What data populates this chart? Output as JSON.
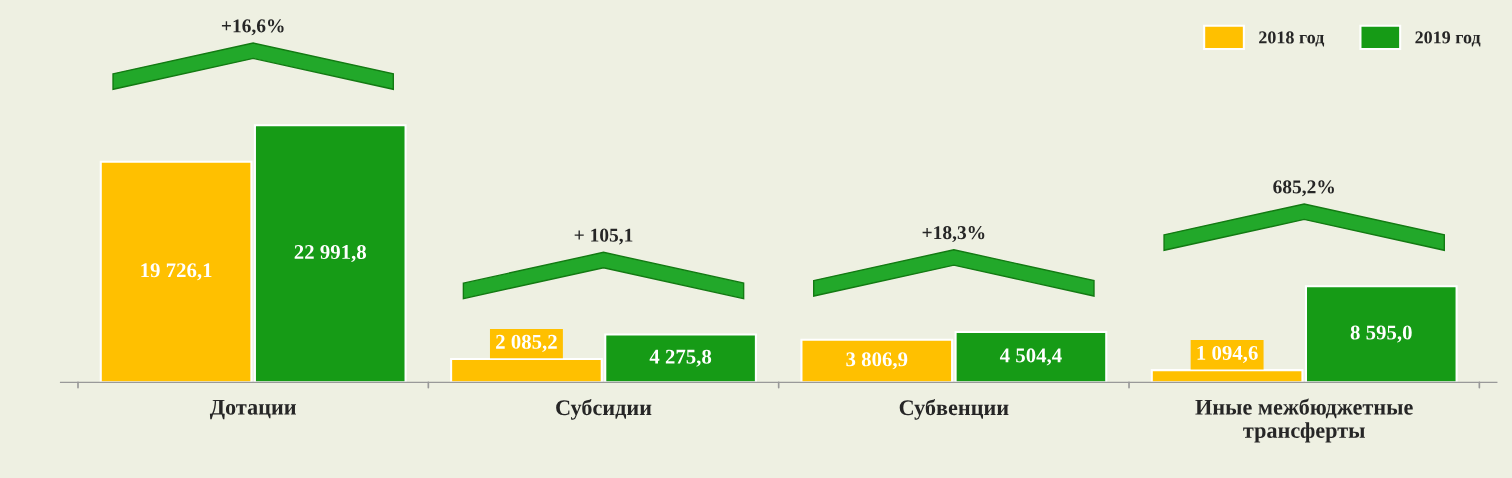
{
  "chart_data": {
    "type": "bar",
    "categories": [
      "Дотации",
      "Субсидии",
      "Субвенции",
      "Иные межбюджетные\nтрансферты"
    ],
    "series": [
      {
        "name": "2018 год",
        "color": "#ffc000",
        "values": [
          19726.1,
          2085.2,
          3806.9,
          1094.6
        ],
        "value_labels": [
          "19 726,1",
          "2 085,2",
          "3 806,9",
          "1 094,6"
        ]
      },
      {
        "name": "2019 год",
        "color": "#169b16",
        "values": [
          22991.8,
          4275.8,
          4504.4,
          8595.0
        ],
        "value_labels": [
          "22 991,8",
          "4 275,8",
          "4 504,4",
          "8 595,0"
        ]
      }
    ],
    "annotations": [
      "+16,6%",
      "+ 105,1",
      "+18,3%",
      "685,2%"
    ],
    "legend": "top right",
    "grid": false
  }
}
